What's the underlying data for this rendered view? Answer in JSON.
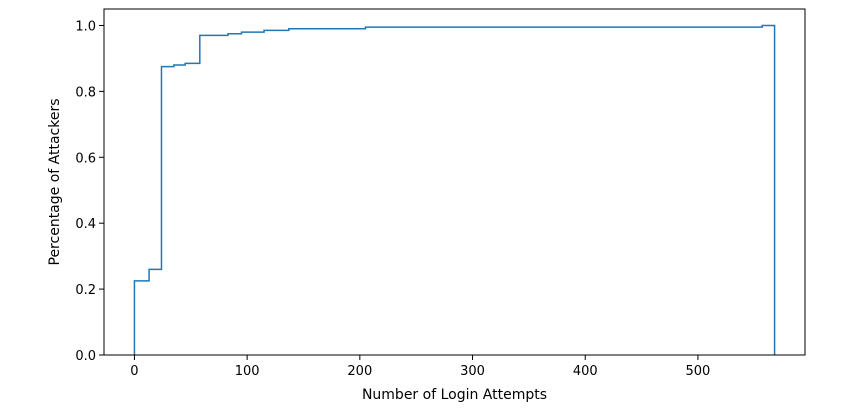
{
  "chart_data": {
    "type": "line",
    "step": "post",
    "title": "",
    "xlabel": "Number of Login Attempts",
    "ylabel": "Percentage of Attackers",
    "xlim": [
      -27,
      595
    ],
    "ylim": [
      0,
      1.05
    ],
    "grid": false,
    "legend": "none",
    "x_ticks": [
      0,
      100,
      200,
      300,
      400,
      500
    ],
    "x_tick_labels": [
      "0",
      "100",
      "200",
      "300",
      "400",
      "500"
    ],
    "y_ticks": [
      0.0,
      0.2,
      0.4,
      0.6,
      0.8,
      1.0
    ],
    "y_tick_labels": [
      "0.0",
      "0.2",
      "0.4",
      "0.6",
      "0.8",
      "1.0"
    ],
    "series": [
      {
        "color": "#1f77b4",
        "points": [
          [
            0,
            0
          ],
          [
            0,
            0.225
          ],
          [
            13,
            0.225
          ],
          [
            13,
            0.26
          ],
          [
            24,
            0.26
          ],
          [
            24,
            0.875
          ],
          [
            35,
            0.875
          ],
          [
            35,
            0.88
          ],
          [
            45,
            0.88
          ],
          [
            45,
            0.885
          ],
          [
            58,
            0.885
          ],
          [
            58,
            0.97
          ],
          [
            83,
            0.97
          ],
          [
            83,
            0.975
          ],
          [
            95,
            0.975
          ],
          [
            95,
            0.98
          ],
          [
            115,
            0.98
          ],
          [
            115,
            0.985
          ],
          [
            137,
            0.985
          ],
          [
            137,
            0.99
          ],
          [
            205,
            0.99
          ],
          [
            205,
            0.995
          ],
          [
            557,
            0.995
          ],
          [
            557,
            1.0
          ],
          [
            568,
            1.0
          ],
          [
            568,
            0
          ]
        ]
      }
    ]
  }
}
